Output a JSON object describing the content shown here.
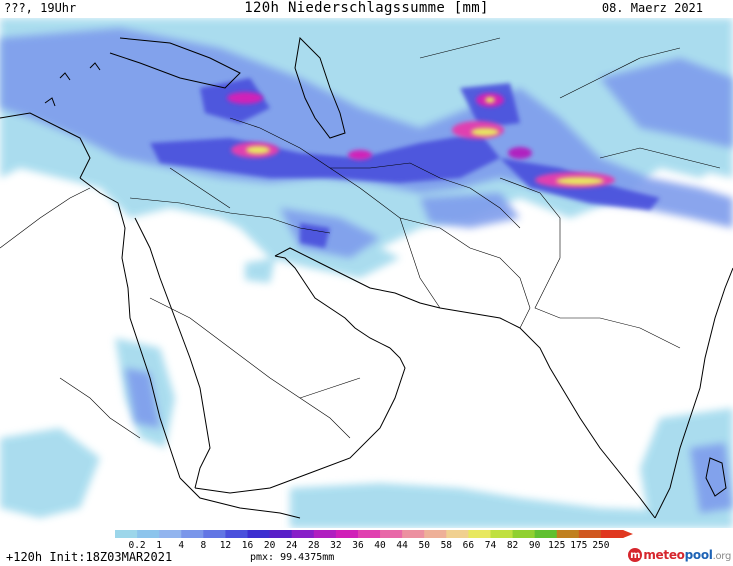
{
  "header": {
    "left": "???, 19Uhr",
    "title": "120h Niederschlagssumme [mm]",
    "right": "08. Maerz 2021"
  },
  "footer": {
    "run": "+120h Init:18Z03MAR2021",
    "pmx": "pmx: 99.4375mm"
  },
  "legend": {
    "ticks": [
      "0.2",
      "1",
      "4",
      "8",
      "12",
      "16",
      "20",
      "24",
      "28",
      "32",
      "36",
      "40",
      "44",
      "50",
      "58",
      "66",
      "74",
      "82",
      "90",
      "125",
      "175",
      "250"
    ],
    "colors": [
      "#9cd6ea",
      "#8cc4ec",
      "#92b4ee",
      "#7a96ea",
      "#6276e4",
      "#4a50dc",
      "#3c2ed0",
      "#5a20c8",
      "#8820c8",
      "#b020c0",
      "#d020b8",
      "#e040b0",
      "#e868a8",
      "#ec90a0",
      "#eeb098",
      "#f0d090",
      "#e8e860",
      "#c0e040",
      "#90d030",
      "#60c030",
      "#c08020",
      "#d05820",
      "#e03820"
    ]
  },
  "logo": {
    "mark": "m",
    "a": "meteo",
    "b": "pool",
    "c": ".org"
  },
  "map": {
    "land_fill": "#ffffff",
    "coastline_color": "#000000",
    "border_color": "#000000",
    "precip_colors": [
      "#9cd6ea",
      "#7aa8ec",
      "#6276e4",
      "#4a50dc",
      "#b020c0",
      "#e868a8",
      "#e8e860"
    ]
  }
}
